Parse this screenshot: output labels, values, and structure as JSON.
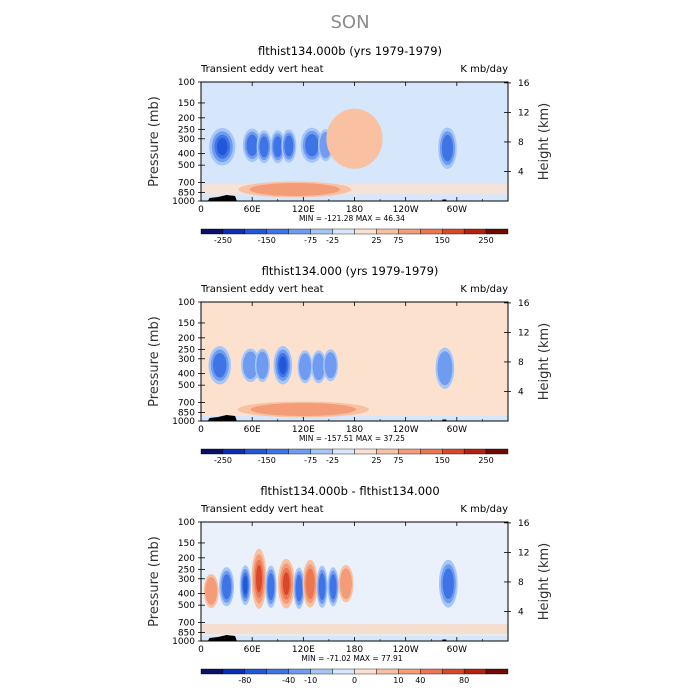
{
  "figure": {
    "season_title": "SON",
    "ylabel_left": "Pressure (mb)",
    "ylabel_right": "Height (km)"
  },
  "colors": {
    "palette": [
      "#08106b",
      "#0a2fb5",
      "#2157d9",
      "#3f74e6",
      "#6f9bf0",
      "#a6c6f7",
      "#d6e6fb",
      "#fde1cf",
      "#f9c1a2",
      "#f39c77",
      "#ec7652",
      "#d9482c",
      "#b5210f",
      "#6e0b04"
    ],
    "terrain": "#000000"
  },
  "chart_data": [
    {
      "type": "contour",
      "title": "flthist134.000b (yrs 1979-1979)",
      "left_label": "Transient eddy vert heat",
      "right_label": "K mb/day",
      "xlabel": "",
      "ylabel": "Pressure (mb)",
      "ylabel_right": "Height (km)",
      "x_ticks": [
        "0",
        "60E",
        "120E",
        "180",
        "120W",
        "60W"
      ],
      "x_tick_lon": [
        0,
        60,
        120,
        180,
        240,
        300
      ],
      "xlim": [
        0,
        360
      ],
      "y_ticks": [
        "100",
        "150",
        "200",
        "250",
        "300",
        "400",
        "500",
        "700",
        "850",
        "1000"
      ],
      "y_tick_p": [
        100,
        150,
        200,
        250,
        300,
        400,
        500,
        700,
        850,
        1000
      ],
      "ylim": [
        100,
        1000
      ],
      "height_ticks": [
        "4",
        "8",
        "12",
        "16"
      ],
      "height_tick_km": [
        4,
        8,
        12,
        16
      ],
      "min_max_text": "MIN = -121.28   MAX =   46.34",
      "colorbar_labels": [
        "-250",
        "-150",
        "-75",
        "-25",
        "25",
        "75",
        "150",
        "250"
      ],
      "background_level": "light-blue",
      "features": [
        {
          "lon": 25,
          "p": 350,
          "width": 14,
          "depth": 170,
          "value": -121.28
        },
        {
          "lon": 60,
          "p": 340,
          "width": 10,
          "depth": 140,
          "value": -90
        },
        {
          "lon": 74,
          "p": 350,
          "width": 8,
          "depth": 140,
          "value": -80
        },
        {
          "lon": 90,
          "p": 350,
          "width": 8,
          "depth": 140,
          "value": -85
        },
        {
          "lon": 103,
          "p": 345,
          "width": 8,
          "depth": 140,
          "value": -75
        },
        {
          "lon": 130,
          "p": 340,
          "width": 12,
          "depth": 150,
          "value": -80
        },
        {
          "lon": 146,
          "p": 340,
          "width": 8,
          "depth": 130,
          "value": -60
        },
        {
          "lon": 289,
          "p": 360,
          "width": 10,
          "depth": 200,
          "value": -90
        },
        {
          "lon": 180,
          "p": 300,
          "width": 30,
          "depth": 260,
          "value": 20
        },
        {
          "lon": 110,
          "p": 800,
          "width": 60,
          "depth": 60,
          "value": 46.34
        }
      ]
    },
    {
      "type": "contour",
      "title": "flthist134.000 (yrs 1979-1979)",
      "left_label": "Transient eddy vert heat",
      "right_label": "K mb/day",
      "xlabel": "",
      "ylabel": "Pressure (mb)",
      "ylabel_right": "Height (km)",
      "x_ticks": [
        "0",
        "60E",
        "120E",
        "180",
        "120W",
        "60W"
      ],
      "x_tick_lon": [
        0,
        60,
        120,
        180,
        240,
        300
      ],
      "xlim": [
        0,
        360
      ],
      "y_ticks": [
        "100",
        "150",
        "200",
        "250",
        "300",
        "400",
        "500",
        "700",
        "850",
        "1000"
      ],
      "y_tick_p": [
        100,
        150,
        200,
        250,
        300,
        400,
        500,
        700,
        850,
        1000
      ],
      "ylim": [
        100,
        1000
      ],
      "height_ticks": [
        "4",
        "8",
        "12",
        "16"
      ],
      "height_tick_km": [
        4,
        8,
        12,
        16
      ],
      "min_max_text": "MIN = -157.51   MAX =   37.25",
      "colorbar_labels": [
        "-250",
        "-150",
        "-75",
        "-25",
        "25",
        "75",
        "150",
        "250"
      ],
      "background_level": "light-orange",
      "features": [
        {
          "lon": 22,
          "p": 340,
          "width": 12,
          "depth": 170,
          "value": -110
        },
        {
          "lon": 58,
          "p": 340,
          "width": 10,
          "depth": 140,
          "value": -70
        },
        {
          "lon": 72,
          "p": 340,
          "width": 8,
          "depth": 140,
          "value": -70
        },
        {
          "lon": 96,
          "p": 340,
          "width": 10,
          "depth": 170,
          "value": -157.51
        },
        {
          "lon": 122,
          "p": 350,
          "width": 8,
          "depth": 140,
          "value": -70
        },
        {
          "lon": 138,
          "p": 350,
          "width": 8,
          "depth": 140,
          "value": -60
        },
        {
          "lon": 152,
          "p": 340,
          "width": 8,
          "depth": 130,
          "value": -50
        },
        {
          "lon": 286,
          "p": 360,
          "width": 10,
          "depth": 200,
          "value": -60
        },
        {
          "lon": 120,
          "p": 800,
          "width": 70,
          "depth": 60,
          "value": 37.25
        }
      ]
    },
    {
      "type": "contour",
      "title": "flthist134.000b - flthist134.000",
      "left_label": "Transient eddy vert heat",
      "right_label": "K mb/day",
      "xlabel": "",
      "ylabel": "Pressure (mb)",
      "ylabel_right": "Height (km)",
      "x_ticks": [
        "0",
        "60E",
        "120E",
        "180",
        "120W",
        "60W"
      ],
      "x_tick_lon": [
        0,
        60,
        120,
        180,
        240,
        300
      ],
      "xlim": [
        0,
        360
      ],
      "y_ticks": [
        "100",
        "150",
        "200",
        "250",
        "300",
        "400",
        "500",
        "700",
        "850",
        "1000"
      ],
      "y_tick_p": [
        100,
        150,
        200,
        250,
        300,
        400,
        500,
        700,
        850,
        1000
      ],
      "ylim": [
        100,
        1000
      ],
      "height_ticks": [
        "4",
        "8",
        "12",
        "16"
      ],
      "height_tick_km": [
        4,
        8,
        12,
        16
      ],
      "min_max_text": "MIN = -71.02   MAX =   77.91",
      "colorbar_labels": [
        "-80",
        "-40",
        "-10",
        "0",
        "10",
        "40",
        "80"
      ],
      "background_level": "near-zero",
      "features": [
        {
          "lon": 30,
          "p": 350,
          "width": 8,
          "depth": 180,
          "value": -50
        },
        {
          "lon": 52,
          "p": 340,
          "width": 6,
          "depth": 180,
          "value": -71.02
        },
        {
          "lon": 68,
          "p": 300,
          "width": 8,
          "depth": 260,
          "value": 70
        },
        {
          "lon": 82,
          "p": 350,
          "width": 6,
          "depth": 200,
          "value": -60
        },
        {
          "lon": 100,
          "p": 330,
          "width": 9,
          "depth": 230,
          "value": 77.91
        },
        {
          "lon": 115,
          "p": 360,
          "width": 6,
          "depth": 200,
          "value": -55
        },
        {
          "lon": 128,
          "p": 330,
          "width": 8,
          "depth": 220,
          "value": 60
        },
        {
          "lon": 142,
          "p": 350,
          "width": 6,
          "depth": 200,
          "value": -60
        },
        {
          "lon": 155,
          "p": 350,
          "width": 6,
          "depth": 180,
          "value": -45
        },
        {
          "lon": 170,
          "p": 330,
          "width": 8,
          "depth": 160,
          "value": 30
        },
        {
          "lon": 290,
          "p": 330,
          "width": 10,
          "depth": 220,
          "value": -60
        },
        {
          "lon": 12,
          "p": 380,
          "width": 8,
          "depth": 160,
          "value": 35
        }
      ]
    }
  ]
}
